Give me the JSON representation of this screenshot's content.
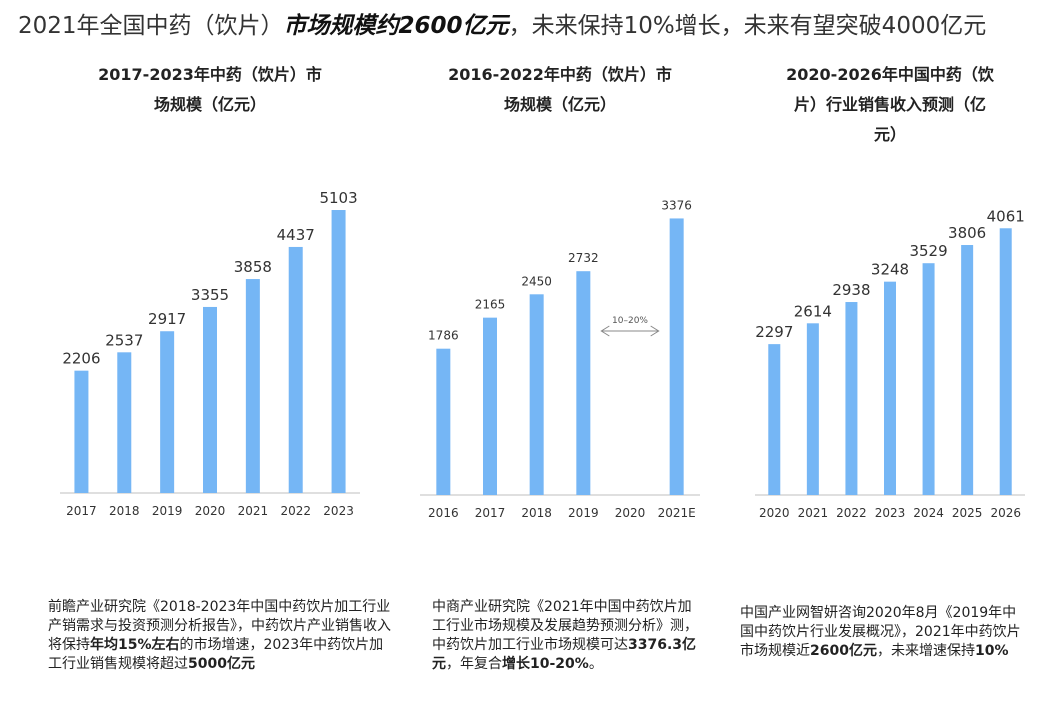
{
  "headline": {
    "before": "2021年全国中药（饮片）",
    "emphasis": "市场规模约2600亿元",
    "after": "，未来保持10%增长，未来有望突破4000亿元"
  },
  "colors": {
    "bar": "#75b6f5",
    "axis": "#bfbfbf",
    "text": "#333333"
  },
  "chart_data": [
    {
      "type": "bar",
      "title_lines": [
        "2017-2023年中药（饮片）市",
        "场规模（亿元）"
      ],
      "categories": [
        "2017",
        "2018",
        "2019",
        "2020",
        "2021",
        "2022",
        "2023"
      ],
      "values": [
        2206,
        2537,
        2917,
        3355,
        3858,
        4437,
        5103
      ],
      "value_labels": [
        "2206",
        "2537",
        "2917",
        "3355",
        "3858",
        "4437",
        "5103"
      ],
      "ylim": [
        0,
        5500
      ],
      "grid": false,
      "legend": "none"
    },
    {
      "type": "bar",
      "title_lines": [
        "2016-2022年中药（饮片）市",
        "场规模（亿元）"
      ],
      "categories": [
        "2016",
        "2017",
        "2018",
        "2019",
        "2020",
        "2021E"
      ],
      "values": [
        1786,
        2165,
        2450,
        2732,
        null,
        3376
      ],
      "value_labels": [
        "1786",
        "2165",
        "2450",
        "2732",
        "",
        "3376"
      ],
      "ylim": [
        0,
        3650
      ],
      "grid": false,
      "legend": "none",
      "annotation": {
        "text": "10–20%",
        "between": [
          "2019",
          "2021E"
        ]
      }
    },
    {
      "type": "bar",
      "title_lines": [
        "2020-2026年中国中药（饮",
        "片）行业销售收入预测（亿",
        "元）"
      ],
      "categories": [
        "2020",
        "2021",
        "2022",
        "2023",
        "2024",
        "2025",
        "2026"
      ],
      "values": [
        2297,
        2614,
        2938,
        3248,
        3529,
        3806,
        4061
      ],
      "value_labels": [
        "2297",
        "2614",
        "2938",
        "3248",
        "3529",
        "3806",
        "4061"
      ],
      "ylim": [
        0,
        4400
      ],
      "grid": false,
      "legend": "none"
    }
  ],
  "sources": [
    {
      "parts": [
        {
          "t": "前瞻产业研究院《2018-2023年中国中药饮片加工行业产销需求与投资预测分析报告》，中药饮片产业销售收入将保持",
          "b": false
        },
        {
          "t": "年均15%左右",
          "b": true
        },
        {
          "t": "的市场增速，2023年中药饮片加工行业销售规模将超过",
          "b": false
        },
        {
          "t": "5000亿元",
          "b": true
        }
      ]
    },
    {
      "parts": [
        {
          "t": "中商产业研究院《2021年中国中药饮片加工行业市场规模及发展趋势预测分析》测，中药饮片加工行业市场规模可达",
          "b": false
        },
        {
          "t": "3376.3亿元",
          "b": true
        },
        {
          "t": "，年复合",
          "b": false
        },
        {
          "t": "增长10-20%",
          "b": true
        },
        {
          "t": "。",
          "b": false
        }
      ]
    },
    {
      "parts": [
        {
          "t": "中国产业网智妍咨询2020年8月《2019年中国中药饮片行业发展概况》，2021年中药饮片市场规模近",
          "b": false
        },
        {
          "t": "2600亿元",
          "b": true
        },
        {
          "t": "，未来增速保持",
          "b": false
        },
        {
          "t": "10%",
          "b": true
        }
      ]
    }
  ]
}
